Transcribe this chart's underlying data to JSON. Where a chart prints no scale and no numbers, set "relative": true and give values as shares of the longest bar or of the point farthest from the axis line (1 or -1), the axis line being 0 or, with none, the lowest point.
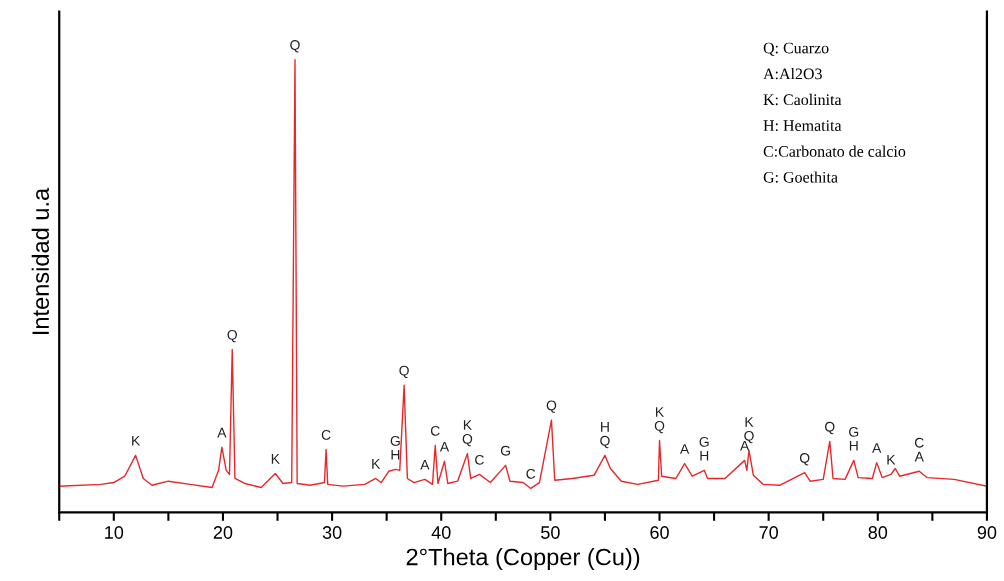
{
  "chart_data": {
    "type": "line",
    "relative": true,
    "xlabel": "2°Theta (Copper (Cu))",
    "ylabel": "Intensidad u.a",
    "tick_labels": "x",
    "grid": false,
    "legend": false,
    "marker": "none",
    "line_style": "solid",
    "xlim": [
      5,
      90
    ],
    "xticks": [
      {
        "value": 5,
        "label": null
      },
      10,
      {
        "value": 15,
        "label": null
      },
      20,
      {
        "value": 25,
        "label": null
      },
      30,
      {
        "value": 35,
        "label": null
      },
      40,
      {
        "value": 45,
        "label": null
      },
      50,
      {
        "value": 55,
        "label": null
      },
      60,
      {
        "value": 65,
        "label": null
      },
      70,
      {
        "value": 75,
        "label": null
      },
      80,
      {
        "value": 85,
        "label": null
      },
      90
    ],
    "series": [
      {
        "color": "#e8272a",
        "x": [
          5,
          8.8,
          10,
          11,
          12,
          12.7,
          13.5,
          15,
          17,
          19,
          19.6,
          19.9,
          20.3,
          20.6,
          20.85,
          21.1,
          22,
          23.5,
          24.8,
          25.5,
          26.3,
          26.6,
          26.8,
          28,
          29.3,
          29.45,
          29.6,
          31,
          33,
          34,
          34.5,
          35.2,
          35.8,
          36.2,
          36.6,
          36.9,
          37.5,
          38.5,
          39.2,
          39.45,
          39.7,
          40.3,
          40.6,
          41.5,
          42.4,
          42.7,
          43.5,
          44.5,
          45.9,
          46.3,
          47.5,
          48.2,
          49,
          50.1,
          50.4,
          52,
          54,
          55,
          55.5,
          56.5,
          58,
          59.9,
          60.0,
          60.2,
          61.5,
          62.3,
          63,
          64.1,
          64.4,
          66,
          67.8,
          68,
          68.2,
          68.6,
          69.5,
          71,
          73.3,
          73.8,
          75,
          75.6,
          75.9,
          77,
          77.8,
          78.2,
          79.5,
          79.9,
          80.4,
          81.2,
          81.6,
          82,
          83.8,
          84.5,
          87,
          90
        ],
        "values": [
          0.058,
          0.062,
          0.066,
          0.08,
          0.126,
          0.075,
          0.06,
          0.069,
          0.062,
          0.055,
          0.093,
          0.144,
          0.093,
          0.084,
          0.36,
          0.075,
          0.064,
          0.055,
          0.086,
          0.064,
          0.066,
          1.0,
          0.064,
          0.06,
          0.066,
          0.139,
          0.062,
          0.058,
          0.062,
          0.075,
          0.066,
          0.091,
          0.095,
          0.093,
          0.281,
          0.075,
          0.066,
          0.073,
          0.062,
          0.148,
          0.064,
          0.113,
          0.064,
          0.069,
          0.13,
          0.075,
          0.084,
          0.066,
          0.104,
          0.069,
          0.066,
          0.053,
          0.066,
          0.204,
          0.071,
          0.075,
          0.082,
          0.126,
          0.097,
          0.069,
          0.062,
          0.071,
          0.159,
          0.08,
          0.075,
          0.108,
          0.08,
          0.093,
          0.075,
          0.075,
          0.115,
          0.093,
          0.137,
          0.082,
          0.062,
          0.06,
          0.088,
          0.069,
          0.073,
          0.157,
          0.075,
          0.073,
          0.115,
          0.077,
          0.075,
          0.11,
          0.077,
          0.084,
          0.097,
          0.08,
          0.091,
          0.077,
          0.073,
          0.058
        ]
      }
    ],
    "annotations": [
      {
        "text": "K",
        "x": 12,
        "y": 0.126
      },
      {
        "text": "A",
        "x": 19.9,
        "y": 0.144
      },
      {
        "text": "Q",
        "x": 20.85,
        "y": 0.36
      },
      {
        "text": "K",
        "x": 24.8,
        "y": 0.086
      },
      {
        "text": "Q",
        "x": 26.6,
        "y": 1.0
      },
      {
        "text": "C",
        "x": 29.45,
        "y": 0.139
      },
      {
        "text": "K",
        "x": 34,
        "y": 0.075
      },
      {
        "text": "H",
        "x": 35.8,
        "y": 0.095
      },
      {
        "text": "G",
        "x": 35.8,
        "y": 0.095
      },
      {
        "text": "Q",
        "x": 36.6,
        "y": 0.281
      },
      {
        "text": "A",
        "x": 38.5,
        "y": 0.073
      },
      {
        "text": "C",
        "x": 39.45,
        "y": 0.148
      },
      {
        "text": "A",
        "x": 40.3,
        "y": 0.113
      },
      {
        "text": "Q",
        "x": 42.4,
        "y": 0.13
      },
      {
        "text": "K",
        "x": 42.4,
        "y": 0.13
      },
      {
        "text": "C",
        "x": 43.5,
        "y": 0.084
      },
      {
        "text": "G",
        "x": 45.9,
        "y": 0.104
      },
      {
        "text": "C",
        "x": 48.2,
        "y": 0.053
      },
      {
        "text": "Q",
        "x": 50.1,
        "y": 0.204
      },
      {
        "text": "Q",
        "x": 55,
        "y": 0.126
      },
      {
        "text": "H",
        "x": 55,
        "y": 0.126
      },
      {
        "text": "Q",
        "x": 60.0,
        "y": 0.159
      },
      {
        "text": "K",
        "x": 60.0,
        "y": 0.159
      },
      {
        "text": "A",
        "x": 62.3,
        "y": 0.108
      },
      {
        "text": "H",
        "x": 64.1,
        "y": 0.093
      },
      {
        "text": "G",
        "x": 64.1,
        "y": 0.093
      },
      {
        "text": "A",
        "x": 67.8,
        "y": 0.115
      },
      {
        "text": "Q",
        "x": 68.2,
        "y": 0.137
      },
      {
        "text": "K",
        "x": 68.2,
        "y": 0.137
      },
      {
        "text": "Q",
        "x": 73.3,
        "y": 0.088
      },
      {
        "text": "Q",
        "x": 75.6,
        "y": 0.157
      },
      {
        "text": "H",
        "x": 77.8,
        "y": 0.115
      },
      {
        "text": "G",
        "x": 77.8,
        "y": 0.115
      },
      {
        "text": "A",
        "x": 79.9,
        "y": 0.11
      },
      {
        "text": "K",
        "x": 81.2,
        "y": 0.084
      },
      {
        "text": "A",
        "x": 83.8,
        "y": 0.091
      },
      {
        "text": "C",
        "x": 83.8,
        "y": 0.091
      },
      "Q: Cuarzo",
      "A:Al2O3",
      "K: Caolinita",
      "H: Hematita",
      "C:Carbonato de calcio",
      "G: Goethita"
    ]
  }
}
